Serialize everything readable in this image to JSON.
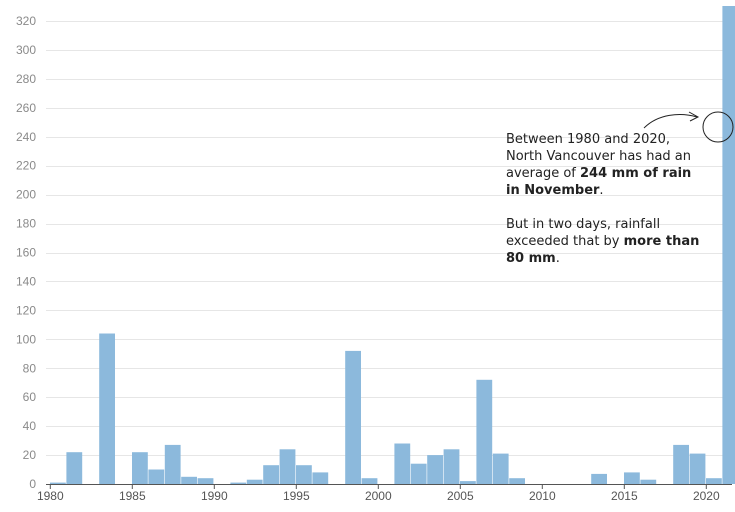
{
  "chart_data": {
    "type": "bar",
    "title": "",
    "xlabel": "",
    "ylabel": "",
    "ylim": [
      0,
      330
    ],
    "y_ticks": [
      0,
      20,
      40,
      60,
      80,
      100,
      120,
      140,
      160,
      180,
      200,
      220,
      240,
      260,
      280,
      300,
      320
    ],
    "x_ticks": [
      1980,
      1985,
      1990,
      1995,
      2000,
      2005,
      2010,
      2015,
      2020
    ],
    "xlim": [
      1980,
      2021
    ],
    "grid": true,
    "bar_color": "#8cb9dc",
    "x": [
      1980,
      1981,
      1982,
      1983,
      1984,
      1985,
      1986,
      1987,
      1988,
      1989,
      1990,
      1991,
      1992,
      1993,
      1994,
      1995,
      1996,
      1997,
      1998,
      1999,
      2000,
      2001,
      2002,
      2003,
      2004,
      2005,
      2006,
      2007,
      2008,
      2009,
      2010,
      2011,
      2012,
      2013,
      2014,
      2015,
      2016,
      2017,
      2018,
      2019,
      2020,
      2021
    ],
    "values": [
      1,
      22,
      0,
      104,
      0,
      22,
      10,
      27,
      5,
      4,
      0,
      1,
      3,
      13,
      24,
      13,
      8,
      0,
      92,
      4,
      0,
      28,
      14,
      20,
      24,
      2,
      72,
      21,
      4,
      0,
      0,
      0,
      0,
      7,
      0,
      8,
      3,
      0,
      27,
      21,
      4,
      331
    ]
  },
  "annotation": {
    "paragraph1": {
      "pre": "Between 1980 and 2020, North Vancouver has had an average of ",
      "bold": "244 mm of rain in November",
      "post": "."
    },
    "paragraph2": {
      "pre": "But in two days, rainfall exceeded that by ",
      "bold": "more than 80 mm",
      "post": "."
    }
  }
}
